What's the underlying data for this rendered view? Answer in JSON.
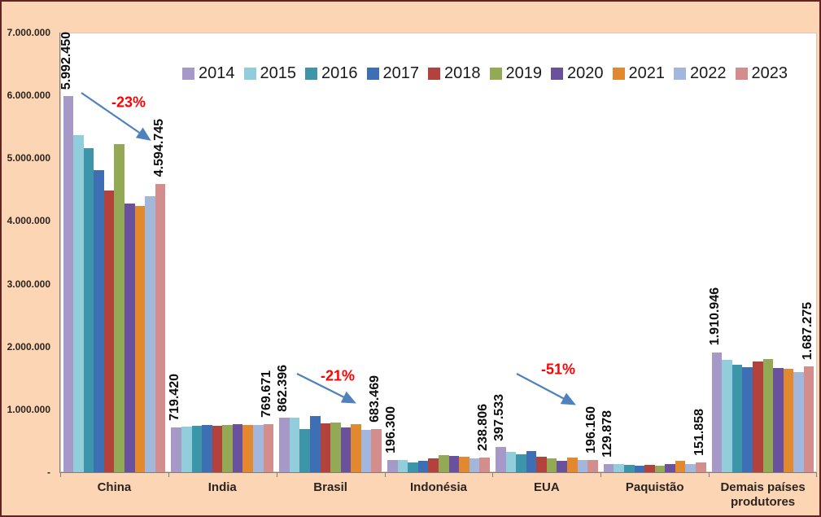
{
  "chart_data": {
    "type": "bar",
    "title": "",
    "xlabel": "",
    "ylabel": "",
    "ylim": [
      0,
      7000000
    ],
    "grid": false,
    "legend_position": "top-inside",
    "categories": [
      "China",
      "India",
      "Brasil",
      "Indonésia",
      "EUA",
      "Paquistão",
      "Demais países produtores"
    ],
    "yticks": [
      {
        "label": "7.000.000",
        "value": 7000000
      },
      {
        "label": "6.000.000",
        "value": 6000000
      },
      {
        "label": "5.000.000",
        "value": 5000000
      },
      {
        "label": "4.000.000",
        "value": 4000000
      },
      {
        "label": "3.000.000",
        "value": 3000000
      },
      {
        "label": "2.000.000",
        "value": 2000000
      },
      {
        "label": "1.000.000",
        "value": 1000000
      },
      {
        "label": "-",
        "value": 0
      }
    ],
    "series": [
      {
        "name": "2014",
        "color": "#a699c7",
        "values": [
          5992450,
          719420,
          862396,
          196300,
          397533,
          129878,
          1910946
        ]
      },
      {
        "name": "2015",
        "color": "#92cddc",
        "values": [
          5370000,
          732000,
          872000,
          188000,
          322000,
          132000,
          1795000
        ]
      },
      {
        "name": "2016",
        "color": "#3c95a9",
        "values": [
          5165000,
          744000,
          690000,
          150000,
          287000,
          120000,
          1715000
        ]
      },
      {
        "name": "2017",
        "color": "#3e6eb4",
        "values": [
          4810000,
          747000,
          890000,
          176000,
          332000,
          108000,
          1672000
        ]
      },
      {
        "name": "2018",
        "color": "#b3423d",
        "values": [
          4490000,
          742000,
          772000,
          216000,
          240000,
          112000,
          1760000
        ]
      },
      {
        "name": "2019",
        "color": "#93a955",
        "values": [
          5230000,
          757000,
          788000,
          270000,
          216000,
          110000,
          1798000
        ]
      },
      {
        "name": "2020",
        "color": "#69519d",
        "values": [
          4280000,
          767000,
          716000,
          262000,
          186000,
          135000,
          1662000
        ]
      },
      {
        "name": "2021",
        "color": "#e2882f",
        "values": [
          4245000,
          752000,
          768000,
          245000,
          231000,
          180000,
          1652000
        ]
      },
      {
        "name": "2022",
        "color": "#a3b6dc",
        "values": [
          4400000,
          748000,
          678000,
          226000,
          196000,
          125000,
          1597000
        ]
      },
      {
        "name": "2023",
        "color": "#d28d8c",
        "values": [
          4594745,
          769671,
          683469,
          238806,
          196160,
          151858,
          1687275
        ]
      }
    ],
    "bar_labels": [
      {
        "category": "China",
        "first": "5.992.450",
        "last": "4.594.745"
      },
      {
        "category": "India",
        "first": "719.420",
        "last": "769.671"
      },
      {
        "category": "Brasil",
        "first": "862.396",
        "last": "683.469"
      },
      {
        "category": "Indonésia",
        "first": "196.300",
        "last": "238.806"
      },
      {
        "category": "EUA",
        "first": "397.533",
        "last": "196.160"
      },
      {
        "category": "Paquistão",
        "first": "129.878",
        "last": "151.858"
      },
      {
        "category": "Demais países produtores",
        "first": "1.910.946",
        "last": "1.687.275"
      }
    ],
    "annotations": [
      {
        "label": "-23%",
        "category": "China"
      },
      {
        "label": "-21%",
        "category": "Brasil"
      },
      {
        "label": "-51%",
        "category": "EUA"
      }
    ],
    "colors": {
      "background": "#fcd5b4",
      "chart_border": "#622423",
      "plot_background": "#ffffff",
      "axis": "#7f7f7f",
      "annotation_text": "#ff0000",
      "arrow": "#4f81bd"
    }
  }
}
